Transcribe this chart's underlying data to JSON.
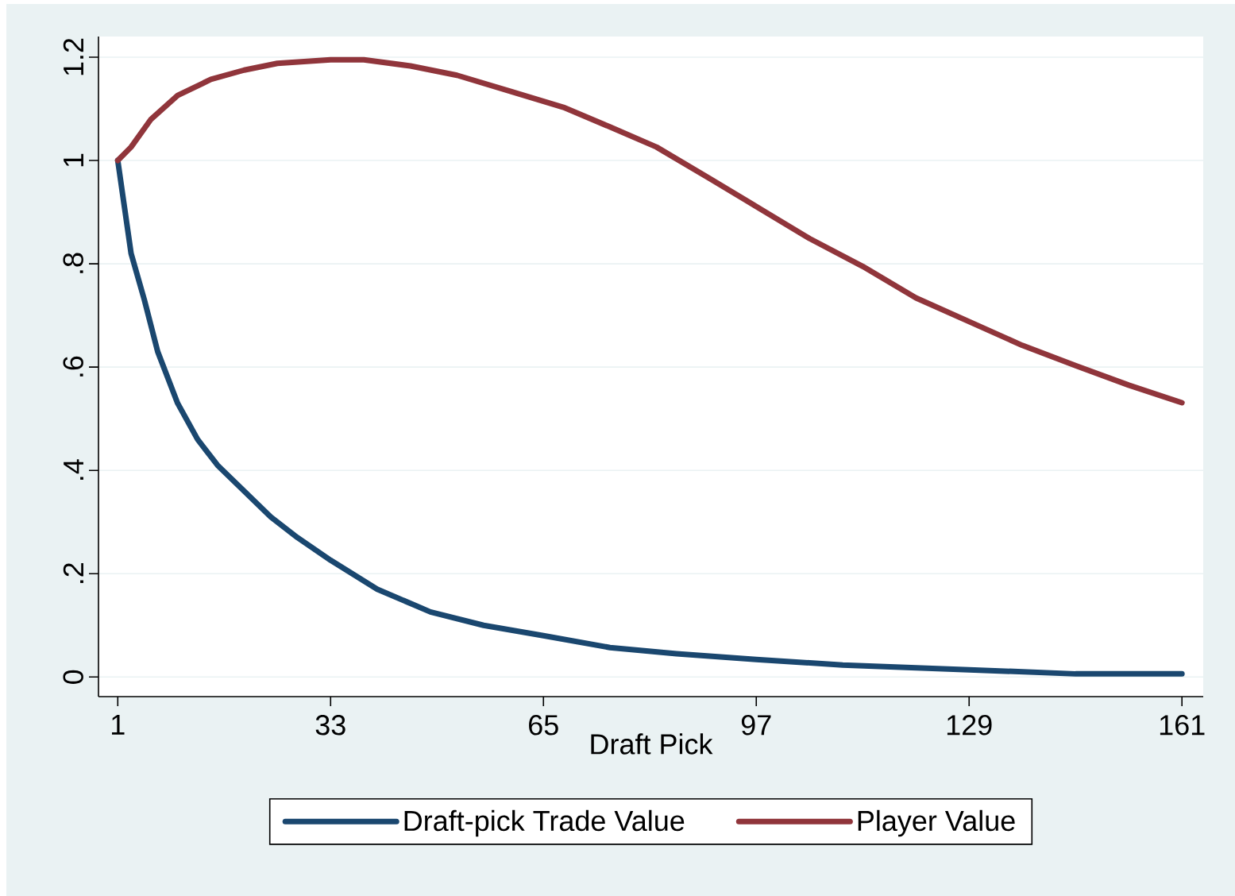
{
  "chart_data": {
    "type": "line",
    "xlabel": "Draft Pick",
    "xlim": [
      -1.9,
      164.2
    ],
    "ylim": [
      -0.038,
      1.24
    ],
    "xticks": [
      1,
      33,
      65,
      97,
      129,
      161
    ],
    "yticks": [
      0,
      {
        "value": 0.2,
        "label": ".2"
      },
      {
        "value": 0.4,
        "label": ".4"
      },
      {
        "value": 0.6,
        "label": ".6"
      },
      {
        "value": 0.8,
        "label": ".8"
      },
      1,
      1.2
    ],
    "grid": "y",
    "legend": "bottom",
    "marker": "none",
    "line_style": "solid",
    "series": [
      {
        "name": "Draft-pick Trade Value",
        "color": "#1a476f",
        "x": [
          1,
          2,
          3,
          5,
          7,
          10,
          13,
          16,
          20,
          24,
          28,
          33,
          40,
          48,
          56,
          65,
          75,
          85,
          97,
          110,
          129,
          145,
          161
        ],
        "values": [
          1.0,
          0.91,
          0.82,
          0.73,
          0.63,
          0.53,
          0.46,
          0.41,
          0.36,
          0.31,
          0.27,
          0.226,
          0.17,
          0.126,
          0.1,
          0.08,
          0.057,
          0.045,
          0.034,
          0.023,
          0.014,
          0.006,
          0.006
        ]
      },
      {
        "name": "Player Value",
        "color": "#90353b",
        "x": [
          1,
          3,
          6,
          10,
          15,
          20,
          25,
          33,
          38,
          45,
          52,
          60,
          68,
          75,
          82,
          90,
          97,
          105,
          113,
          121,
          129,
          137,
          145,
          153,
          161
        ],
        "values": [
          1.0,
          1.026,
          1.08,
          1.126,
          1.157,
          1.175,
          1.188,
          1.195,
          1.195,
          1.183,
          1.165,
          1.134,
          1.103,
          1.065,
          1.026,
          0.965,
          0.911,
          0.849,
          0.795,
          0.734,
          0.688,
          0.642,
          0.603,
          0.565,
          0.531
        ]
      }
    ]
  }
}
